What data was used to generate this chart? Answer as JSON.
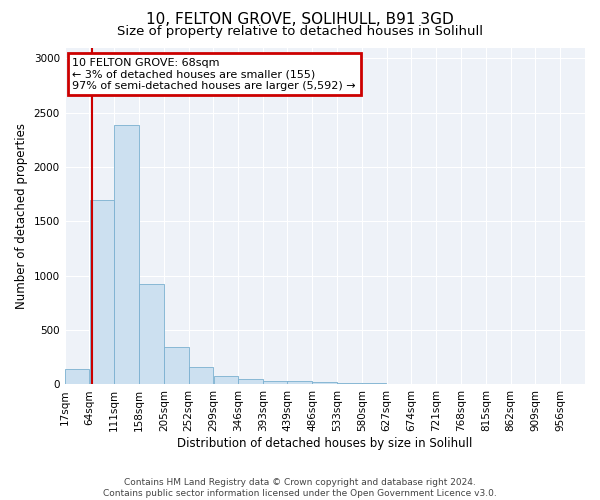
{
  "title1": "10, FELTON GROVE, SOLIHULL, B91 3GD",
  "title2": "Size of property relative to detached houses in Solihull",
  "xlabel": "Distribution of detached houses by size in Solihull",
  "ylabel": "Number of detached properties",
  "footnote": "Contains HM Land Registry data © Crown copyright and database right 2024.\nContains public sector information licensed under the Open Government Licence v3.0.",
  "bin_edges": [
    17,
    64,
    111,
    158,
    205,
    252,
    299,
    346,
    393,
    439,
    486,
    533,
    580,
    627,
    674,
    721,
    768,
    815,
    862,
    909,
    956
  ],
  "bar_heights": [
    140,
    1700,
    2390,
    920,
    345,
    160,
    80,
    50,
    30,
    30,
    25,
    15,
    10,
    5,
    5,
    5,
    3,
    2,
    1,
    1
  ],
  "bar_color": "#cce0f0",
  "bar_edge_color": "#7ab0d0",
  "property_size": 68,
  "vline_color": "#cc0000",
  "annotation_text": "10 FELTON GROVE: 68sqm\n← 3% of detached houses are smaller (155)\n97% of semi-detached houses are larger (5,592) →",
  "annotation_box_color": "#cc0000",
  "ylim": [
    0,
    3100
  ],
  "yticks": [
    0,
    500,
    1000,
    1500,
    2000,
    2500,
    3000
  ],
  "background_color": "#eef2f8",
  "grid_color": "#ffffff",
  "title1_fontsize": 11,
  "title2_fontsize": 9.5,
  "axis_label_fontsize": 8.5,
  "tick_fontsize": 7.5,
  "annotation_fontsize": 8
}
